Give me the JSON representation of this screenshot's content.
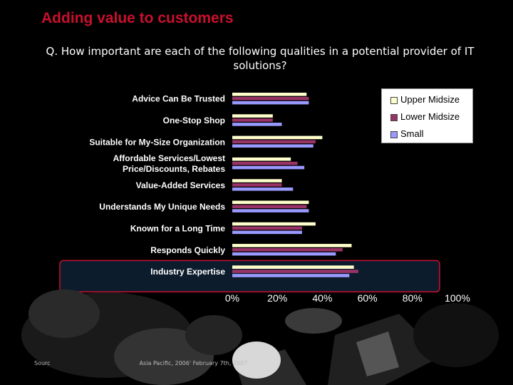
{
  "slide": {
    "title": "Adding value to customers",
    "question": "Q. How important are each of the following qualities in a potential provider of IT solutions?",
    "source_fragment_left": "Sourc",
    "source_fragment_right": "Asia Pacific, 2006' February 7th, 2007"
  },
  "colors": {
    "title": "#c8102e",
    "highlight_border": "#c8102e",
    "highlight_fill": "#0c1c2c"
  },
  "chart_data": {
    "type": "bar",
    "orientation": "horizontal",
    "categories": [
      "Advice Can Be Trusted",
      "One-Stop Shop",
      "Suitable for My-Size Organization",
      "Affordable Services/Lowest Price/Discounts, Rebates",
      "Value-Added Services",
      "Understands My Unique Needs",
      "Known for a Long Time",
      "Responds Quickly",
      "Industry Expertise"
    ],
    "category_lines": [
      [
        "Advice Can Be Trusted"
      ],
      [
        "One-Stop Shop"
      ],
      [
        "Suitable for My-Size Organization"
      ],
      [
        "Affordable Services/Lowest",
        "Price/Discounts, Rebates"
      ],
      [
        "Value-Added Services"
      ],
      [
        "Understands My Unique Needs"
      ],
      [
        "Known for a Long Time"
      ],
      [
        "Responds Quickly"
      ],
      [
        "Industry Expertise"
      ]
    ],
    "series": [
      {
        "name": "Upper Midsize",
        "color": "#ffffcc",
        "values": [
          33,
          18,
          40,
          26,
          22,
          34,
          37,
          53,
          54
        ]
      },
      {
        "name": "Lower Midsize",
        "color": "#993366",
        "values": [
          34,
          18,
          37,
          29,
          22,
          33,
          31,
          49,
          56
        ]
      },
      {
        "name": "Small",
        "color": "#9999ff",
        "values": [
          34,
          22,
          36,
          32,
          27,
          34,
          31,
          46,
          52
        ]
      }
    ],
    "xlim": [
      0,
      100
    ],
    "x_ticks": [
      "0%",
      "20%",
      "40%",
      "60%",
      "80%",
      "100%"
    ],
    "highlighted_category": "Industry Expertise",
    "legend_position": "top-right"
  }
}
